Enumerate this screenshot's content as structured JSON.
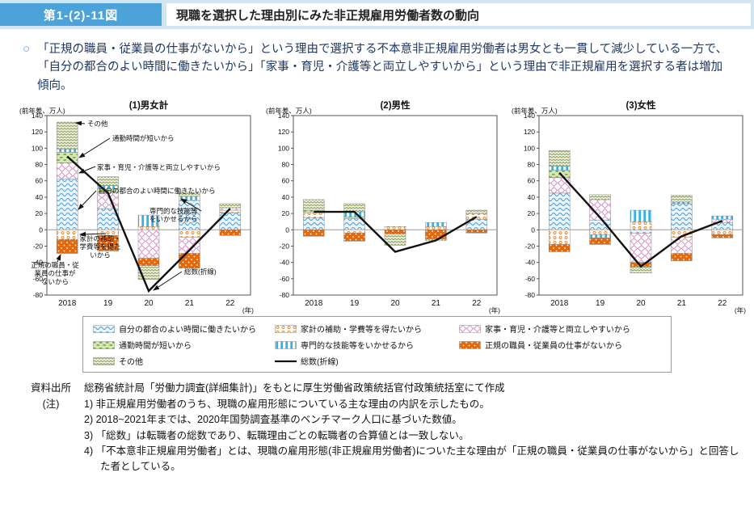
{
  "header": {
    "figure_label": "第1-(2)-11図",
    "title": "現職を選択した理由別にみた非正規雇用労働者数の動向"
  },
  "summary": "「正規の職員・従業員の仕事がないから」という理由で選択する不本意非正規雇用労働者は男女とも一貫して減少している一方で、「自分の都合のよい時間に働きたいから」「家事・育児・介護等と両立しやすいから」という理由で非正規雇用を選択する者は増加傾向。",
  "colors": {
    "header_band": "#cfe7f5",
    "header_badge": "#4ba3d9",
    "summary_text": "#1f3864",
    "zero_line": "#9a9a9a",
    "axis": "#444444",
    "total_line": "#111111"
  },
  "series_defs": [
    {
      "key": "jibun",
      "label": "自分の都合のよい時間に働きたいから",
      "bg": "#e9f4fc",
      "accent": "#4c9cd6"
    },
    {
      "key": "kakei",
      "label": "家計の補助・学費等を得たいから",
      "bg": "#ffffff",
      "accent": "#f0892c"
    },
    {
      "key": "kaji",
      "label": "家事・育児・介護等と両立しやすいから",
      "bg": "#ffffff",
      "accent": "#d893c5"
    },
    {
      "key": "tsukin",
      "label": "通勤時間が短いから",
      "bg": "#d5e7b5",
      "accent": "#74a23c"
    },
    {
      "key": "senmon",
      "label": "専門的な技能等をいかせるから",
      "bg": "#ffffff",
      "accent": "#33b1e4"
    },
    {
      "key": "seiki",
      "label": "正規の職員・従業員の仕事がないから",
      "bg": "#e4690b",
      "accent": "#ffffff"
    },
    {
      "key": "sonota",
      "label": "その他",
      "bg": "#f0f2e4",
      "accent": "#8fa15e"
    },
    {
      "key": "sosu",
      "label": "総数(折線)",
      "color": "#111111",
      "type": "line"
    }
  ],
  "chart_data": [
    {
      "type": "bar+line",
      "title": "(1)男女計",
      "y_axis_label": "(前年差、万人)",
      "ylim": [
        -80,
        140
      ],
      "ytick_step": 20,
      "x_labels": [
        "2018",
        "19",
        "20",
        "21",
        "22"
      ],
      "x_unit": "(年)",
      "series": [
        {
          "key": "jibun",
          "values": [
            62,
            26,
            0,
            36,
            21
          ]
        },
        {
          "key": "kakei",
          "values": [
            -12,
            -7,
            4,
            -9,
            3
          ]
        },
        {
          "key": "kaji",
          "values": [
            20,
            20,
            -35,
            -20,
            3
          ]
        },
        {
          "key": "tsukin",
          "values": [
            13,
            4,
            0,
            0,
            0
          ]
        },
        {
          "key": "senmon",
          "values": [
            4,
            4,
            14,
            5,
            0
          ]
        },
        {
          "key": "seiki",
          "values": [
            -17,
            -19,
            -9,
            -18,
            -7
          ]
        },
        {
          "key": "sonota",
          "values": [
            33,
            11,
            -17,
            5,
            5
          ]
        }
      ],
      "line": {
        "key": "sosu",
        "label": "総数(折線)",
        "values": [
          90,
          45,
          -75,
          -25,
          26
        ]
      },
      "annotations": [
        {
          "text": "その他",
          "x": 90,
          "y": 33,
          "anchor": "start",
          "arrow": [
            87,
            30,
            76,
            29
          ]
        },
        {
          "text": "通勤時間が短いから",
          "x": 121,
          "y": 51,
          "anchor": "start",
          "arrow": [
            118,
            48,
            80,
            72
          ]
        },
        {
          "text": "家事・育児・介護等と両立しやすいから",
          "x": 102,
          "y": 87,
          "anchor": "start",
          "arrow": [
            100,
            83,
            80,
            91
          ]
        },
        {
          "text": "自分の都合のよい時間に働きたいから",
          "x": 104,
          "y": 116,
          "anchor": "start",
          "arrow": [
            101,
            113,
            79,
            136
          ]
        },
        {
          "text": "専門的な技能等\nをいかせるから",
          "x": 167,
          "y": 141,
          "anchor": "start",
          "arrow": [
            231,
            138,
            206,
            123
          ]
        },
        {
          "text": "家計の補助・\n学費等を得た\nいから",
          "x": 106,
          "y": 175,
          "anchor": "middle",
          "arrow": [
            113,
            166,
            81,
            167
          ]
        },
        {
          "text": "正規の職員・従\n業員の仕事が\nないから",
          "x": 50,
          "y": 208,
          "anchor": "middle",
          "arrow": [
            53,
            201,
            57,
            192
          ]
        },
        {
          "text": "総数(折線)",
          "x": 210,
          "y": 216,
          "anchor": "start",
          "arrow": [
            207,
            213,
            172,
            236
          ]
        }
      ]
    },
    {
      "type": "bar+line",
      "title": "(2)男性",
      "y_axis_label": "(前年差、万人)",
      "ylim": [
        -80,
        140
      ],
      "ytick_step": 20,
      "x_labels": [
        "2018",
        "19",
        "20",
        "21",
        "22"
      ],
      "x_unit": "(年)",
      "series": [
        {
          "key": "jibun",
          "values": [
            15,
            14,
            0,
            0,
            13
          ]
        },
        {
          "key": "kakei",
          "values": [
            6,
            -4,
            4,
            4,
            7
          ]
        },
        {
          "key": "kaji",
          "values": [
            0,
            0,
            0,
            0,
            0
          ]
        },
        {
          "key": "tsukin",
          "values": [
            3,
            2,
            0,
            0,
            0
          ]
        },
        {
          "key": "senmon",
          "values": [
            0,
            6,
            0,
            5,
            0
          ]
        },
        {
          "key": "seiki",
          "values": [
            -8,
            -10,
            -5,
            -11,
            -4
          ]
        },
        {
          "key": "sonota",
          "values": [
            13,
            10,
            -14,
            -2,
            4
          ]
        }
      ],
      "line": {
        "key": "sosu",
        "label": "総数(折線)",
        "values": [
          22,
          22,
          -27,
          -13,
          16
        ]
      },
      "annotations": []
    },
    {
      "type": "bar+line",
      "title": "(3)女性",
      "y_axis_label": "(前年差、万人)",
      "ylim": [
        -80,
        140
      ],
      "ytick_step": 20,
      "x_labels": [
        "2018",
        "19",
        "20",
        "21",
        "22"
      ],
      "x_unit": "(年)",
      "series": [
        {
          "key": "jibun",
          "values": [
            45,
            12,
            -4,
            32,
            9
          ]
        },
        {
          "key": "kakei",
          "values": [
            -18,
            -6,
            10,
            -9,
            -6
          ]
        },
        {
          "key": "kaji",
          "values": [
            19,
            25,
            -36,
            -20,
            4
          ]
        },
        {
          "key": "tsukin",
          "values": [
            9,
            0,
            0,
            0,
            0
          ]
        },
        {
          "key": "senmon",
          "values": [
            5,
            -4,
            14,
            2,
            4
          ]
        },
        {
          "key": "seiki",
          "values": [
            -9,
            -8,
            -5,
            -9,
            -4
          ]
        },
        {
          "key": "sonota",
          "values": [
            19,
            6,
            -8,
            8,
            0
          ]
        }
      ],
      "line": {
        "key": "sosu",
        "label": "総数(折線)",
        "values": [
          70,
          15,
          -45,
          -8,
          11
        ]
      },
      "annotations": []
    }
  ],
  "notes": {
    "source_label": "資料出所",
    "source": "総務省統計局「労働力調査(詳細集計)」をもとに厚生労働省政策統括官付政策統括室にて作成",
    "note_label": "(注)",
    "items": [
      "1) 非正規雇用労働者のうち、現職の雇用形態についている主な理由の内訳を示したもの。",
      "2) 2018~2021年までは、2020年国勢調査基準のベンチマーク人口に基づいた数値。",
      "3) 「総数」は転職者の総数であり、転職理由ごとの転職者の合算値とは一致しない。",
      "4) 「不本意非正規雇用労働者」とは、現職の雇用形態(非正規雇用労働者)についた主な理由が「正規の職員・従業員の仕事がないから」と回答した者としている。"
    ]
  }
}
